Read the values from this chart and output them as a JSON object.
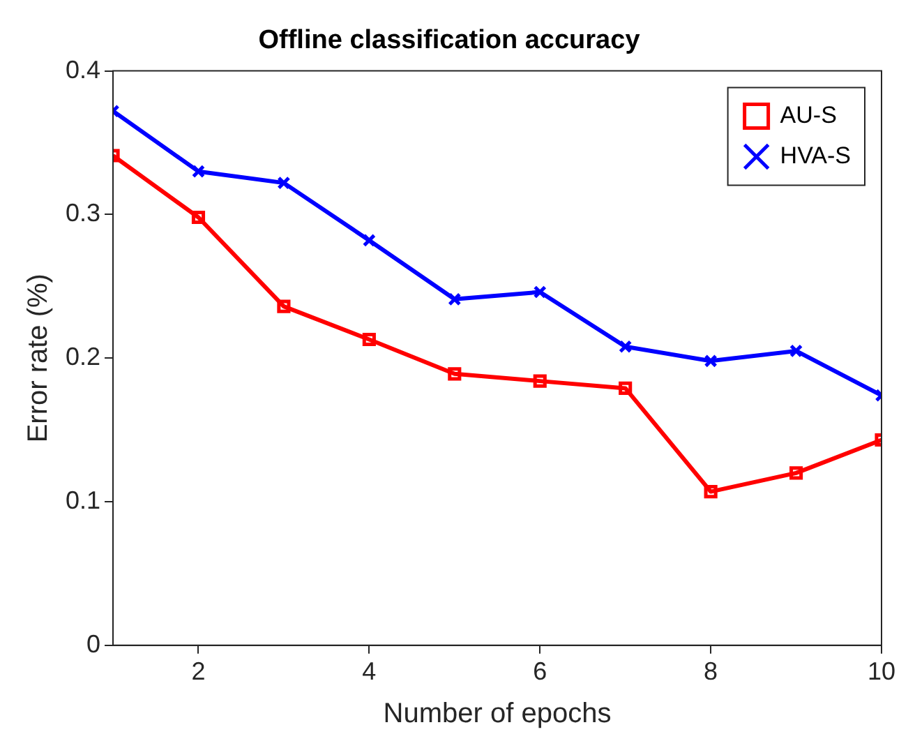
{
  "chart_data": {
    "type": "line",
    "title": "Offline classification accuracy",
    "xlabel": "Number of epochs",
    "ylabel": "Error rate (%)",
    "x": [
      1,
      2,
      3,
      4,
      5,
      6,
      7,
      8,
      9,
      10
    ],
    "series": [
      {
        "name": "AU-S",
        "color": "#ff0000",
        "marker": "square",
        "values": [
          0.341,
          0.298,
          0.236,
          0.213,
          0.189,
          0.184,
          0.179,
          0.107,
          0.12,
          0.143
        ]
      },
      {
        "name": "HVA-S",
        "color": "#0000ff",
        "marker": "cross",
        "values": [
          0.372,
          0.33,
          0.322,
          0.282,
          0.241,
          0.246,
          0.208,
          0.198,
          0.205,
          0.174
        ]
      }
    ],
    "xlim": [
      1,
      10
    ],
    "xticks": [
      2,
      4,
      6,
      8,
      10
    ],
    "ylim": [
      0,
      0.4
    ],
    "yticks": [
      0,
      0.1,
      0.2,
      0.3,
      0.4
    ],
    "grid": false,
    "legend": "top right",
    "line_style": "solid"
  }
}
